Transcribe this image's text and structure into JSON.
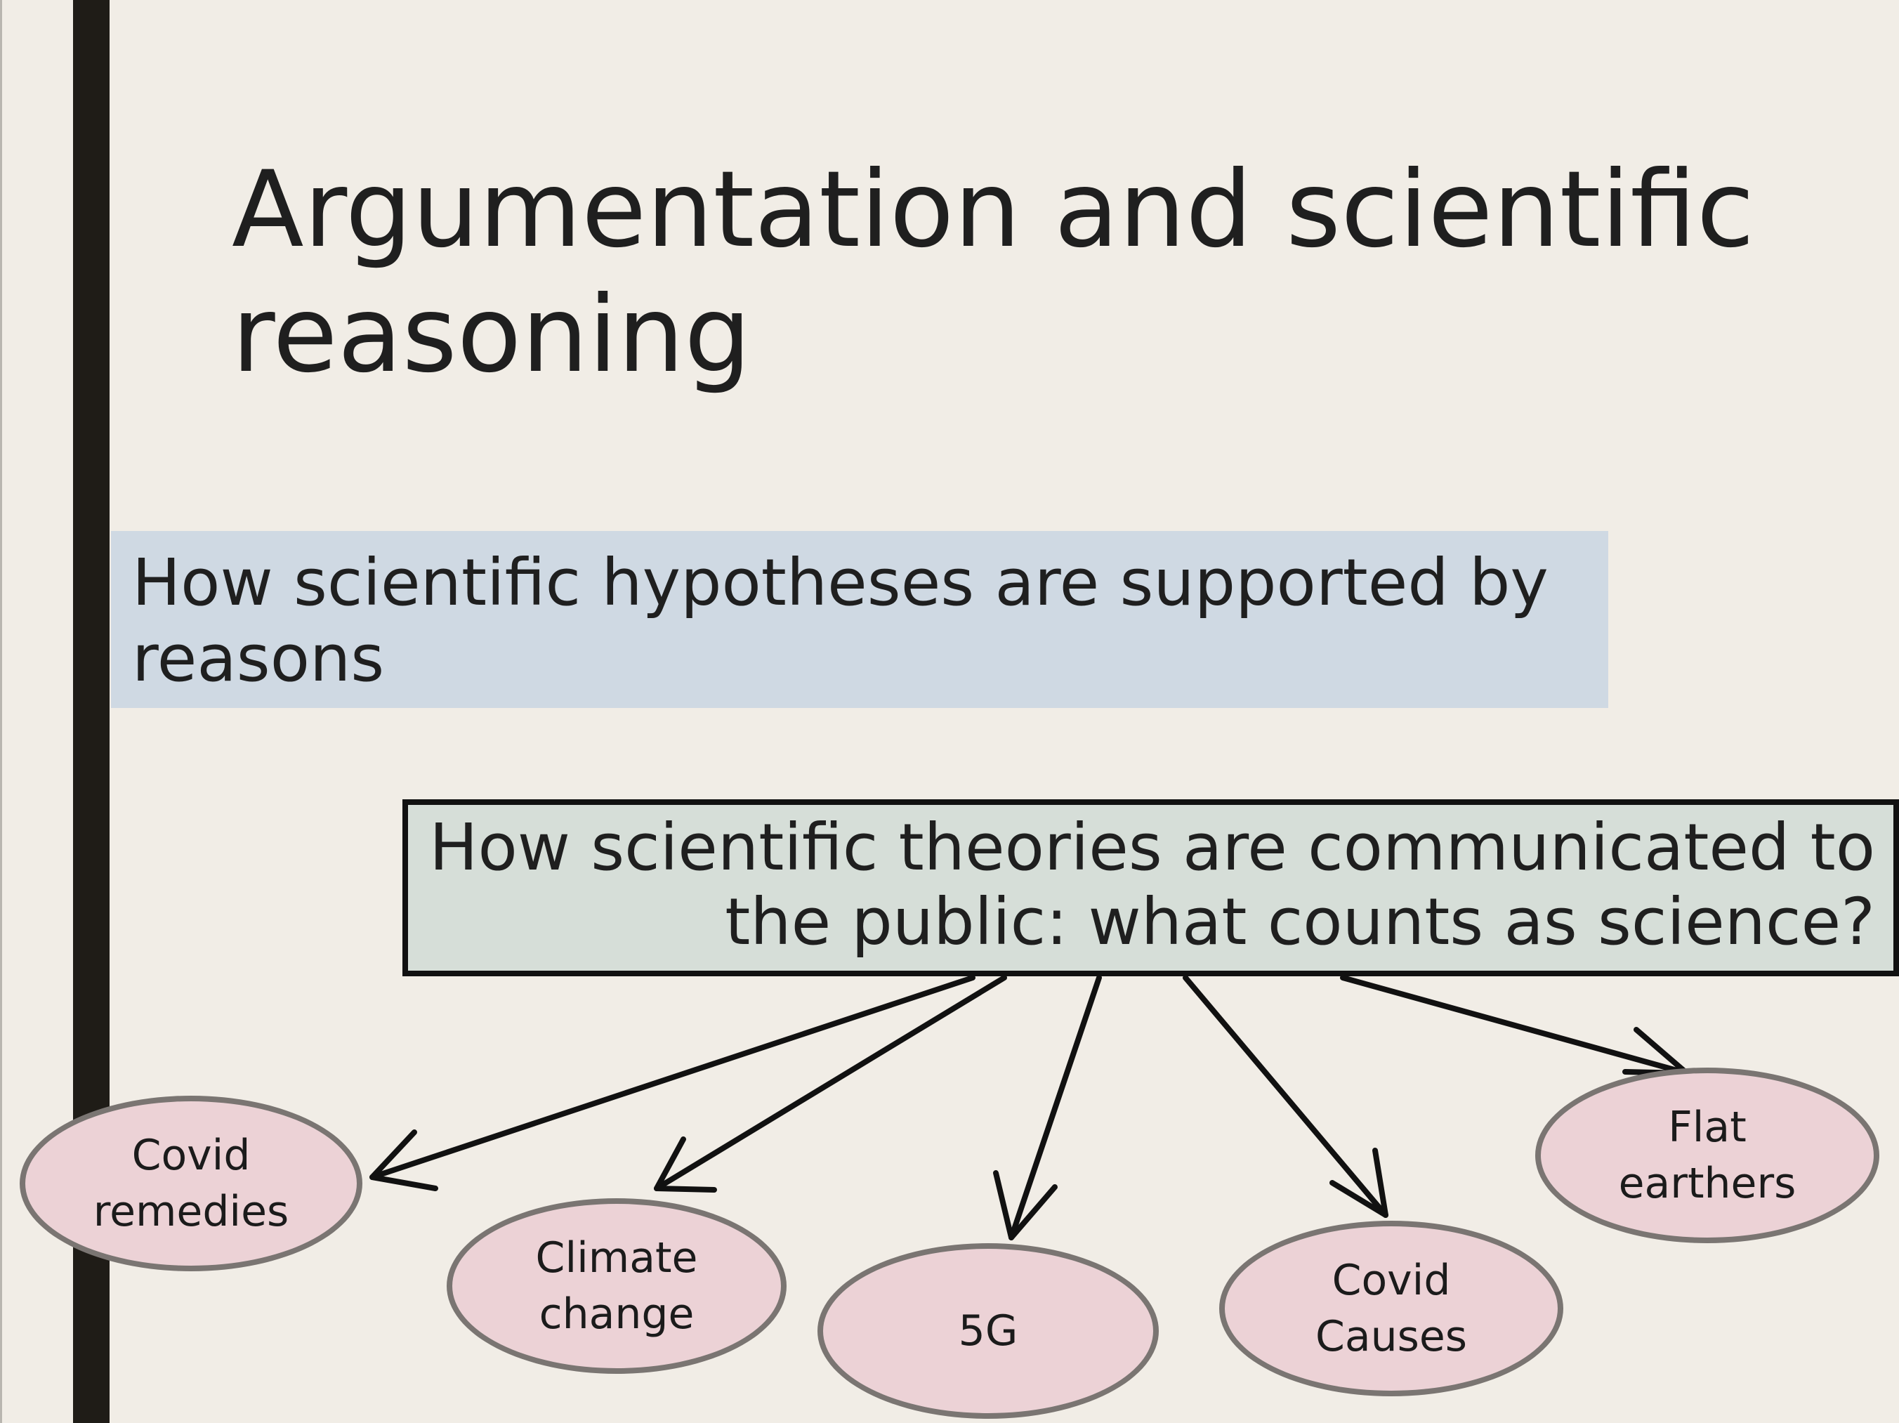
{
  "slide": {
    "title": "Argumentation and scientific reasoning",
    "hypotheses_text": "How scientific hypotheses are supported by reasons",
    "theories_text": "How scientific theories are communicated to the public: what counts as science?",
    "topics": [
      {
        "label": "Covid\nremedies"
      },
      {
        "label": "Climate\nchange"
      },
      {
        "label": "5G"
      },
      {
        "label": "Covid\nCauses"
      },
      {
        "label": "Flat\nearthers"
      }
    ]
  },
  "colors": {
    "background": "#f1ede6",
    "left_bar": "#1f1c17",
    "hypotheses_fill": "#cfd9e3",
    "theories_fill": "#d6ded8",
    "topic_fill": "#ecd2d6",
    "topic_border": "#7a7572"
  }
}
